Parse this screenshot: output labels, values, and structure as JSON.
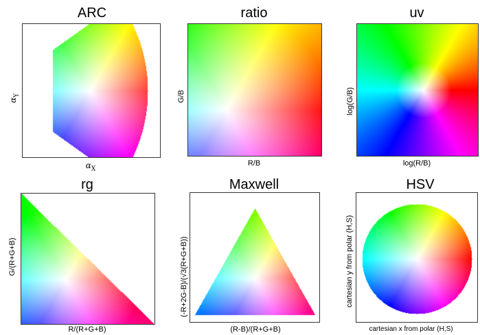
{
  "panels": {
    "arc": {
      "title": "ARC",
      "xlabel_sym": "α",
      "xlabel_sub": "X",
      "ylabel_sym": "α",
      "ylabel_sub": "Y"
    },
    "ratio": {
      "title": "ratio",
      "xlabel": "R/B",
      "ylabel": "G/B"
    },
    "uv": {
      "title": "uv",
      "xlabel": "log(R/B)",
      "ylabel": "log(G/B)"
    },
    "rg": {
      "title": "rg",
      "xlabel": "R/(R+G+B)",
      "ylabel": "G/(R+G+B)"
    },
    "maxwell": {
      "title": "Maxwell",
      "xlabel": "(R-B)/(R+G+B)",
      "ylabel": "(-R+2G-B)/(√3(R+G+B))"
    },
    "hsv": {
      "title": "HSV",
      "xlabel": "cartesian x from polar (H,S)",
      "ylabel": "cartesian y from polar (H,S)"
    }
  }
}
